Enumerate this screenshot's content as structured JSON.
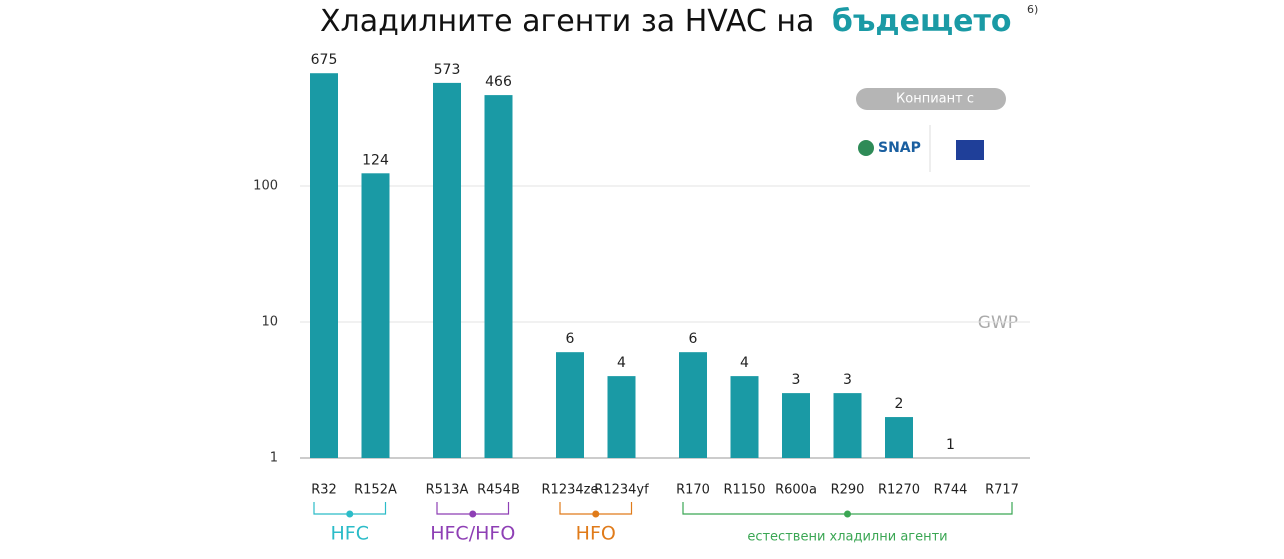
{
  "chart_data": {
    "type": "bar",
    "title": "Хладилните агенти за HVAC на",
    "title_highlight": "бъдещето",
    "title_note": "6)",
    "axis_label": "GWP",
    "badge": "Конпиант с",
    "logo": "SNAP",
    "categories": [
      "R32",
      "R152A",
      "R513A",
      "R454B",
      "R1234ze",
      "R1234yf",
      "R170",
      "R1150",
      "R600a",
      "R290",
      "R1270",
      "R744",
      "R717"
    ],
    "values": [
      675,
      124,
      573,
      466,
      6,
      4,
      6,
      4,
      3,
      3,
      2,
      1,
      null
    ],
    "color": "#1a9aa5",
    "log_scale": true,
    "ylim": [
      1,
      1000
    ],
    "yticks": [
      1,
      10,
      100
    ],
    "grid": true,
    "groups": [
      {
        "name": "HFC",
        "color": "#2bbcc8"
      },
      {
        "name": "HFC/HFO",
        "color": "#8e3fb5"
      },
      {
        "name": "HFO",
        "color": "#e07b1a"
      },
      {
        "name": "естествени хладилни агенти",
        "color": "#3aa653"
      }
    ]
  }
}
